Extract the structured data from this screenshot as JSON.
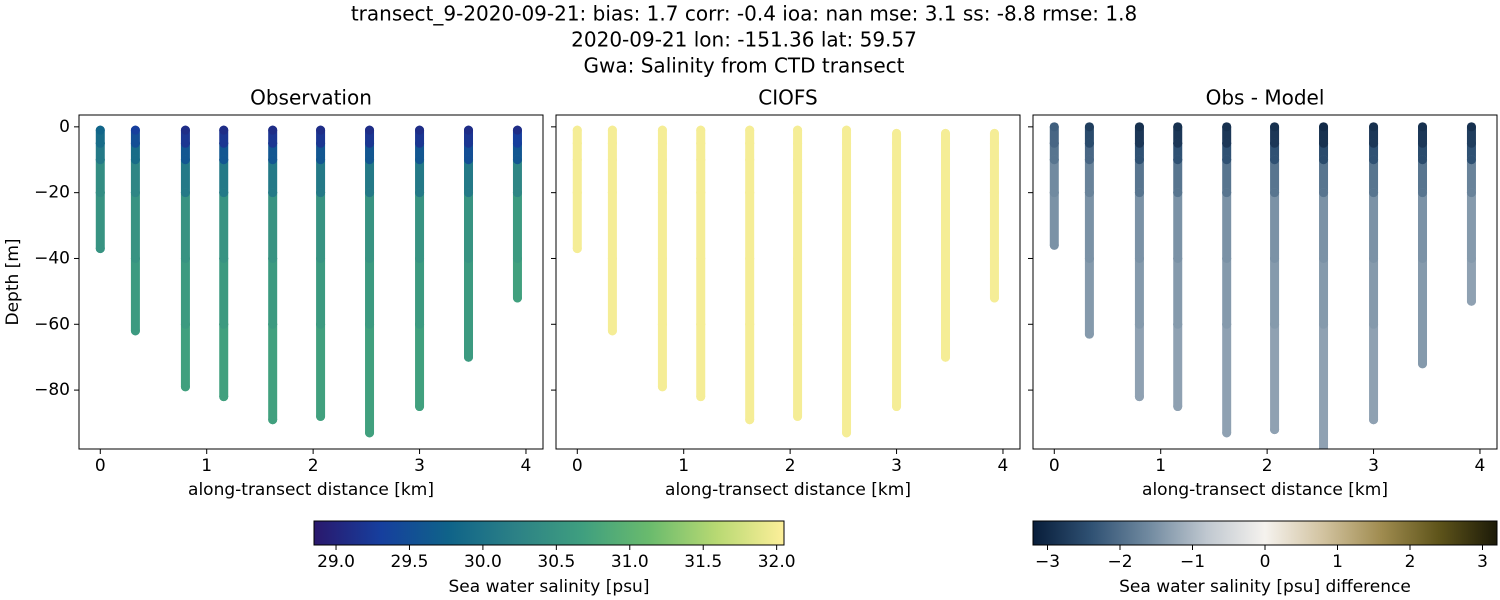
{
  "title": [
    "transect_9-2020-09-21: bias: 1.7  corr: -0.4  ioa: nan  mse: 3.1  ss: -8.8  rmse: 1.8",
    "2020-09-21 lon: -151.36 lat: 59.57",
    "Gwa: Salinity from CTD transect"
  ],
  "chart_data": [
    {
      "type": "scatter",
      "title": "Observation",
      "xlabel": "along-transect distance [km]",
      "ylabel": "Depth [m]",
      "xlim": [
        -0.2,
        4.16
      ],
      "ylim": [
        -97.9,
        3.6
      ],
      "xticks": [
        0,
        1,
        2,
        3,
        4
      ],
      "yticks": [
        0,
        {
          "value": -20,
          "label": "−20"
        },
        {
          "value": -40,
          "label": "−40"
        },
        {
          "value": -60,
          "label": "−60"
        },
        {
          "value": -80,
          "label": "−80"
        }
      ],
      "series": [
        {
          "x": 0,
          "y": [
            -1,
            -5,
            -10,
            -20,
            -37
          ],
          "values": [
            29.8,
            29.9,
            30.1,
            30.4,
            30.5
          ]
        },
        {
          "x": 0.33,
          "y": [
            -1,
            -5,
            -10,
            -20,
            -40,
            -62
          ],
          "values": [
            29.3,
            29.5,
            29.9,
            30.3,
            30.5,
            30.6
          ]
        },
        {
          "x": 0.8,
          "y": [
            -1,
            -5,
            -10,
            -20,
            -40,
            -60,
            -79
          ],
          "values": [
            29.1,
            29.2,
            29.6,
            30.1,
            30.5,
            30.6,
            30.7
          ]
        },
        {
          "x": 1.16,
          "y": [
            -1,
            -5,
            -10,
            -20,
            -40,
            -60,
            -82
          ],
          "values": [
            29.1,
            29.2,
            29.6,
            30.1,
            30.5,
            30.6,
            30.7
          ]
        },
        {
          "x": 1.62,
          "y": [
            -1,
            -5,
            -10,
            -20,
            -40,
            -60,
            -89
          ],
          "values": [
            29.1,
            29.2,
            29.6,
            30.1,
            30.5,
            30.6,
            30.7
          ]
        },
        {
          "x": 2.07,
          "y": [
            -1,
            -5,
            -10,
            -20,
            -40,
            -60,
            -88
          ],
          "values": [
            29.1,
            29.2,
            29.6,
            30.1,
            30.5,
            30.6,
            30.7
          ]
        },
        {
          "x": 2.53,
          "y": [
            -1,
            -5,
            -10,
            -20,
            -40,
            -60,
            -93
          ],
          "values": [
            29.1,
            29.2,
            29.6,
            30.1,
            30.5,
            30.6,
            30.7
          ]
        },
        {
          "x": 3.0,
          "y": [
            -1,
            -5,
            -10,
            -20,
            -40,
            -60,
            -85
          ],
          "values": [
            29.1,
            29.2,
            29.6,
            30.1,
            30.5,
            30.6,
            30.7
          ]
        },
        {
          "x": 3.46,
          "y": [
            -1,
            -5,
            -10,
            -20,
            -40,
            -70
          ],
          "values": [
            29.1,
            29.2,
            29.5,
            30.1,
            30.5,
            30.6
          ]
        },
        {
          "x": 3.92,
          "y": [
            -1,
            -5,
            -10,
            -20,
            -40,
            -52
          ],
          "values": [
            29.1,
            29.3,
            29.6,
            30.3,
            30.6,
            30.7
          ]
        }
      ]
    },
    {
      "type": "scatter",
      "title": "CIOFS",
      "xlabel": "along-transect distance [km]",
      "xlim": [
        -0.2,
        4.16
      ],
      "ylim": [
        -97.9,
        3.6
      ],
      "xticks": [
        0,
        1,
        2,
        3,
        4
      ],
      "series": [
        {
          "x": 0,
          "y": [
            -1,
            -5,
            -10,
            -20,
            -37
          ],
          "values": [
            32.0,
            32.0,
            32.0,
            32.0,
            32.0
          ]
        },
        {
          "x": 0.33,
          "y": [
            -1,
            -5,
            -10,
            -20,
            -40,
            -62
          ],
          "values": [
            32.0,
            32.0,
            32.0,
            32.0,
            32.0,
            32.0
          ]
        },
        {
          "x": 0.8,
          "y": [
            -1,
            -5,
            -10,
            -20,
            -40,
            -60,
            -79
          ],
          "values": [
            32.0,
            32.0,
            32.0,
            32.0,
            32.0,
            32.0,
            32.0
          ]
        },
        {
          "x": 1.16,
          "y": [
            -1,
            -5,
            -10,
            -20,
            -40,
            -60,
            -82
          ],
          "values": [
            32.0,
            32.0,
            32.0,
            32.0,
            32.0,
            32.0,
            32.0
          ]
        },
        {
          "x": 1.62,
          "y": [
            -1,
            -5,
            -10,
            -20,
            -40,
            -60,
            -89
          ],
          "values": [
            32.0,
            32.0,
            32.0,
            32.0,
            32.0,
            32.0,
            32.0
          ]
        },
        {
          "x": 2.07,
          "y": [
            -1,
            -5,
            -10,
            -20,
            -40,
            -60,
            -88
          ],
          "values": [
            32.0,
            32.0,
            32.0,
            32.0,
            32.0,
            32.0,
            32.0
          ]
        },
        {
          "x": 2.53,
          "y": [
            -1,
            -5,
            -10,
            -20,
            -40,
            -60,
            -93
          ],
          "values": [
            32.0,
            32.0,
            32.0,
            32.0,
            32.0,
            32.0,
            32.0
          ]
        },
        {
          "x": 3.0,
          "y": [
            -2,
            -5,
            -10,
            -20,
            -40,
            -60,
            -85
          ],
          "values": [
            32.0,
            32.0,
            32.0,
            32.0,
            32.0,
            32.0,
            32.0
          ]
        },
        {
          "x": 3.46,
          "y": [
            -2,
            -5,
            -10,
            -20,
            -40,
            -70
          ],
          "values": [
            32.0,
            32.0,
            32.0,
            32.0,
            32.0,
            32.0
          ]
        },
        {
          "x": 3.92,
          "y": [
            -2,
            -5,
            -10,
            -20,
            -40,
            -52
          ],
          "values": [
            32.0,
            32.0,
            32.0,
            32.0,
            32.0,
            32.0
          ]
        }
      ]
    },
    {
      "type": "scatter",
      "title": "Obs - Model",
      "xlabel": "along-transect distance [km]",
      "xlim": [
        -0.2,
        4.16
      ],
      "ylim": [
        -97.9,
        3.6
      ],
      "xticks": [
        0,
        1,
        2,
        3,
        4
      ],
      "series": [
        {
          "x": 0,
          "y": [
            0,
            -5,
            -10,
            -20,
            -36
          ],
          "values": [
            -2.2,
            -2.1,
            -1.9,
            -1.6,
            -1.5
          ]
        },
        {
          "x": 0.33,
          "y": [
            0,
            -5,
            -10,
            -20,
            -40,
            -63
          ],
          "values": [
            -2.7,
            -2.5,
            -2.1,
            -1.7,
            -1.5,
            -1.4
          ]
        },
        {
          "x": 0.8,
          "y": [
            0,
            -5,
            -10,
            -20,
            -40,
            -60,
            -82
          ],
          "values": [
            -2.9,
            -2.8,
            -2.4,
            -1.9,
            -1.5,
            -1.4,
            -1.3
          ]
        },
        {
          "x": 1.16,
          "y": [
            0,
            -5,
            -10,
            -20,
            -40,
            -60,
            -85
          ],
          "values": [
            -2.9,
            -2.8,
            -2.4,
            -1.9,
            -1.5,
            -1.4,
            -1.3
          ]
        },
        {
          "x": 1.62,
          "y": [
            0,
            -5,
            -10,
            -20,
            -40,
            -60,
            -93
          ],
          "values": [
            -2.9,
            -2.8,
            -2.4,
            -1.9,
            -1.5,
            -1.4,
            -1.3
          ]
        },
        {
          "x": 2.07,
          "y": [
            0,
            -5,
            -10,
            -20,
            -40,
            -60,
            -92
          ],
          "values": [
            -2.9,
            -2.8,
            -2.4,
            -1.9,
            -1.5,
            -1.4,
            -1.3
          ]
        },
        {
          "x": 2.53,
          "y": [
            0,
            -5,
            -10,
            -20,
            -40,
            -60,
            -98
          ],
          "values": [
            -3.0,
            -2.9,
            -2.5,
            -1.9,
            -1.5,
            -1.4,
            -1.3
          ]
        },
        {
          "x": 3.0,
          "y": [
            0,
            -5,
            -10,
            -20,
            -40,
            -60,
            -89
          ],
          "values": [
            -2.9,
            -2.8,
            -2.4,
            -1.9,
            -1.5,
            -1.4,
            -1.3
          ]
        },
        {
          "x": 3.46,
          "y": [
            0,
            -5,
            -10,
            -20,
            -40,
            -72
          ],
          "values": [
            -2.9,
            -2.8,
            -2.5,
            -1.9,
            -1.5,
            -1.4
          ]
        },
        {
          "x": 3.92,
          "y": [
            0,
            -5,
            -10,
            -20,
            -40,
            -53
          ],
          "values": [
            -2.9,
            -2.7,
            -2.4,
            -1.7,
            -1.4,
            -1.3
          ]
        }
      ]
    }
  ],
  "colorbars": [
    {
      "label": "Sea water salinity [psu]",
      "lim": [
        28.85,
        32.05
      ],
      "colors": [
        "#2a186c",
        "#163f9e",
        "#0f6389",
        "#2c8186",
        "#3f9f7f",
        "#6abb6d",
        "#b8d973",
        "#fdef9a"
      ],
      "ticks": [
        {
          "value": 29,
          "label": "29.0"
        },
        {
          "value": 29.5,
          "label": "29.5"
        },
        {
          "value": 30,
          "label": "30.0"
        },
        {
          "value": 30.5,
          "label": "30.5"
        },
        {
          "value": 31,
          "label": "31.0"
        },
        {
          "value": 31.5,
          "label": "31.5"
        },
        {
          "value": 32,
          "label": "32.0"
        }
      ]
    },
    {
      "label": "Sea water salinity [psu] difference",
      "lim": [
        -3.2,
        3.2
      ],
      "colors": [
        "#081d3a",
        "#2f5173",
        "#718aa0",
        "#c0c8d0",
        "#f5f2ee",
        "#d2c3a0",
        "#a08c50",
        "#5e541a",
        "#1c1a08"
      ],
      "ticks": [
        {
          "value": -3,
          "label": "−3"
        },
        {
          "value": -2,
          "label": "−2"
        },
        {
          "value": -1,
          "label": "−1"
        },
        0,
        1,
        2,
        3
      ]
    }
  ]
}
